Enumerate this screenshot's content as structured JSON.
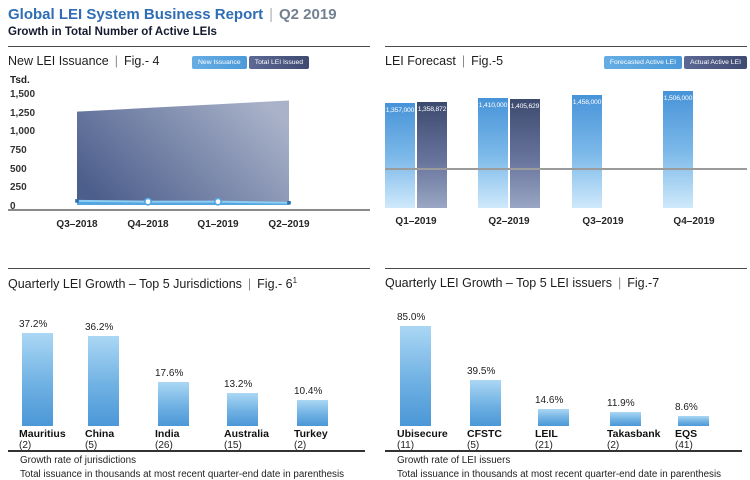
{
  "header": {
    "title": "Global LEI System Business Report",
    "separator": "|",
    "period": "Q2 2019",
    "subtitle": "Growth in Total Number of Active LEIs"
  },
  "colors": {
    "header_blue": "#2f6db4",
    "light_blue_bar_top": "#4793d8",
    "light_blue_bar_bottom": "#cfe9fb",
    "growth_bar_top": "#abd7f4",
    "growth_bar_bottom": "#4b97d7",
    "slate_dark": "#3d4a6f",
    "slate_light": "#9aa6c3",
    "issuance_line_blue": "#55a5e1"
  },
  "chart_data": [
    {
      "id": "fig4",
      "type": "area",
      "title": "New LEI Issuance",
      "fig_label": "Fig.- 4",
      "unit_label": "Tsd.",
      "legend": [
        "New Issuance",
        "Total LEI Issued"
      ],
      "categories": [
        "Q3–2018",
        "Q4–2018",
        "Q1–2019",
        "Q2–2019"
      ],
      "series": [
        {
          "name": "New Issuance",
          "values": [
            55,
            45,
            45,
            30
          ]
        },
        {
          "name": "Total LEI Issued",
          "values": [
            1250,
            1300,
            1350,
            1400
          ]
        }
      ],
      "ylim": [
        0,
        1500
      ],
      "yticks": [
        "1,500",
        "1,250",
        "1,000",
        "750",
        "500",
        "250",
        "0"
      ]
    },
    {
      "id": "fig5",
      "type": "bar",
      "title": "LEI Forecast",
      "fig_label": "Fig.-5",
      "legend": [
        "Forecasted Active LEI",
        "Actual Active LEI"
      ],
      "categories": [
        "Q1–2019",
        "Q2–2019",
        "Q3–2019",
        "Q4–2019"
      ],
      "series": [
        {
          "name": "Forecasted Active LEI",
          "values": [
            1357000,
            1410000,
            1458000,
            1506000
          ],
          "labels": [
            "1,357,000",
            "1,410,000",
            "1,458,000",
            "1,506,000"
          ]
        },
        {
          "name": "Actual Active LEI",
          "values": [
            1358872,
            1405629,
            null,
            null
          ],
          "labels": [
            "1,358,872",
            "1,405,629",
            null,
            null
          ]
        }
      ],
      "ylim": [
        0,
        1506000
      ]
    },
    {
      "id": "fig6",
      "type": "bar",
      "title": "Quarterly LEI Growth – Top 5 Jurisdictions",
      "fig_label": "Fig.- 6",
      "fig_superscript": "1",
      "categories": [
        "Mauritius",
        "China",
        "India",
        "Australia",
        "Turkey"
      ],
      "counts": [
        "(2)",
        "(5)",
        "(26)",
        "(15)",
        "(2)"
      ],
      "values": [
        37.2,
        36.2,
        17.6,
        13.2,
        10.4
      ],
      "labels": [
        "37.2%",
        "36.2%",
        "17.6%",
        "13.2%",
        "10.4%"
      ],
      "footnotes": [
        "Growth rate of jurisdictions",
        "Total issuance in thousands at most recent quarter-end date in parenthesis"
      ],
      "ylim": [
        0,
        37.2
      ]
    },
    {
      "id": "fig7",
      "type": "bar",
      "title": "Quarterly LEI Growth – Top 5 LEI issuers",
      "fig_label": "Fig.-7",
      "categories": [
        "Ubisecure",
        "CFSTC",
        "LEIL",
        "Takasbank",
        "EQS"
      ],
      "counts": [
        "(11)",
        "(5)",
        "(21)",
        "(2)",
        "(41)"
      ],
      "values": [
        85.0,
        39.5,
        14.6,
        11.9,
        8.6
      ],
      "labels": [
        "85.0%",
        "39.5%",
        "14.6%",
        "11.9%",
        "8.6%"
      ],
      "footnotes": [
        "Growth rate of LEI issuers",
        "Total issuance in thousands at most recent quarter-end date in parenthesis"
      ],
      "ylim": [
        0,
        85.0
      ]
    }
  ]
}
